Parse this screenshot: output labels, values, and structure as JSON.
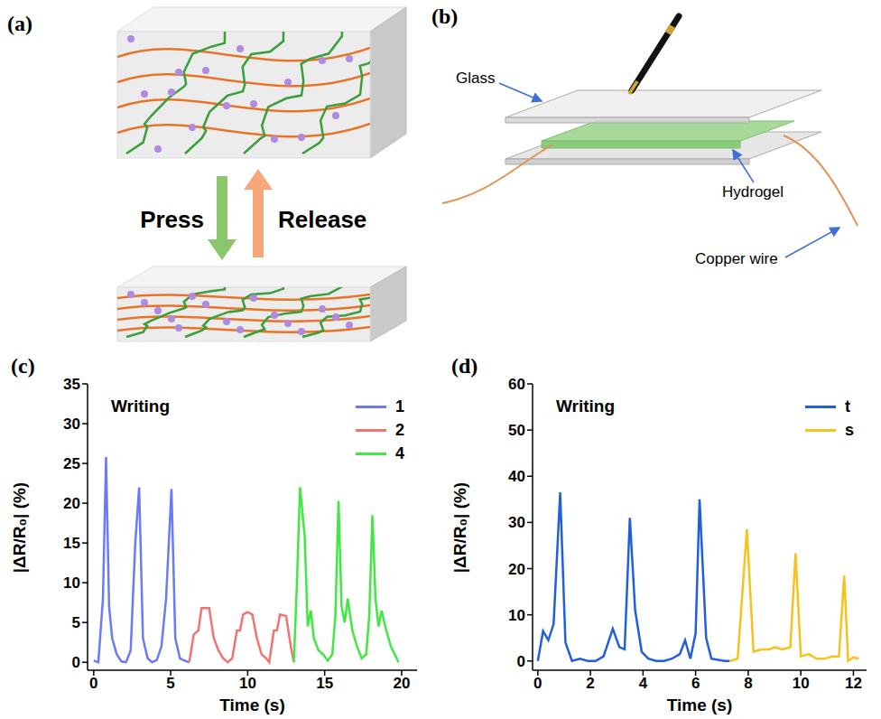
{
  "diagrams": {
    "a": {
      "label": "(a)",
      "press": "Press",
      "release": "Release"
    },
    "b": {
      "label": "(b)",
      "glass": "Glass",
      "hydrogel": "Hydrogel",
      "copper_wire": "Copper wire"
    }
  },
  "chart_data": [
    {
      "type": "line",
      "title": "(c)",
      "annotations": [
        "Writing"
      ],
      "x_label": "Time (s)",
      "y_label": "|ΔR/R₀| (%)",
      "xlim": [
        -0.4,
        21
      ],
      "xticks": [
        0,
        5,
        10,
        15,
        20
      ],
      "ylim": [
        -1,
        35
      ],
      "yticks": [
        0,
        5,
        10,
        15,
        20,
        25,
        30,
        35
      ],
      "legend": "upper right",
      "series": [
        {
          "name": "1",
          "color": "#6B7AF7",
          "x": [
            0,
            0.3,
            0.6,
            0.8,
            1.0,
            1.2,
            1.5,
            1.8,
            2.1,
            2.4,
            2.7,
            2.95,
            3.2,
            3.5,
            3.8,
            4.1,
            4.4,
            4.7,
            5.05,
            5.3,
            5.6,
            5.9,
            6.2
          ],
          "values": [
            0.2,
            0,
            8,
            25.8,
            7,
            3,
            1,
            0.1,
            0,
            1.5,
            15,
            22,
            3,
            0.5,
            0,
            0.3,
            2,
            8,
            21.8,
            3,
            0.5,
            0.2,
            0
          ]
        },
        {
          "name": "2",
          "color": "#F07470",
          "x": [
            6.2,
            6.5,
            6.8,
            7.0,
            7.5,
            7.8,
            8.1,
            8.4,
            8.7,
            9.0,
            9.3,
            9.5,
            9.7,
            10.0,
            10.3,
            10.6,
            10.9,
            11.2,
            11.4,
            11.7,
            11.9,
            12.1,
            12.5,
            12.8,
            13.0
          ],
          "values": [
            0,
            3.5,
            4,
            6.8,
            6.8,
            3,
            1.5,
            0.5,
            0,
            0.5,
            4,
            4,
            6,
            6.3,
            6,
            3,
            1,
            0.5,
            0,
            4,
            4,
            6,
            5.8,
            2,
            0
          ]
        },
        {
          "name": "4",
          "color": "#42E842",
          "x": [
            13.0,
            13.2,
            13.4,
            13.7,
            13.9,
            14.1,
            14.3,
            14.6,
            14.9,
            15.2,
            15.5,
            15.7,
            15.9,
            16.1,
            16.3,
            16.5,
            16.8,
            17.1,
            17.4,
            17.7,
            17.9,
            18.1,
            18.3,
            18.5,
            18.7,
            19.0,
            19.3,
            19.6,
            19.8
          ],
          "values": [
            0,
            10,
            22,
            16,
            4.5,
            6.5,
            3,
            1.5,
            1,
            0.2,
            1,
            6,
            20.3,
            7,
            5,
            8,
            4,
            2,
            0.5,
            1,
            6,
            18.5,
            8,
            4.5,
            6.5,
            4,
            2,
            0.8,
            0
          ]
        }
      ]
    },
    {
      "type": "line",
      "title": "(d)",
      "annotations": [
        "Writing"
      ],
      "x_label": "Time (s)",
      "y_label": "|ΔR/R₀| (%)",
      "xlim": [
        -0.2,
        12.5
      ],
      "xticks": [
        0,
        2,
        4,
        6,
        8,
        10,
        12
      ],
      "ylim": [
        -2,
        60
      ],
      "yticks": [
        0,
        10,
        20,
        30,
        40,
        50,
        60
      ],
      "legend": "upper right",
      "series": [
        {
          "name": "t",
          "color": "#1F5FE0",
          "x": [
            0,
            0.2,
            0.4,
            0.6,
            0.85,
            1.05,
            1.3,
            1.6,
            1.9,
            2.2,
            2.5,
            2.85,
            3.1,
            3.3,
            3.5,
            3.7,
            3.95,
            4.2,
            4.5,
            4.8,
            5.1,
            5.4,
            5.6,
            5.8,
            6.0,
            6.15,
            6.4,
            6.6,
            6.8,
            7.1,
            7.3
          ],
          "values": [
            0,
            6.5,
            4.5,
            8,
            36.5,
            4,
            0,
            0.5,
            0,
            0,
            1,
            7,
            3,
            2.5,
            31,
            11,
            2,
            0.5,
            0,
            0,
            0.5,
            1.5,
            4.5,
            0.5,
            6,
            35,
            5,
            0.5,
            0.3,
            0,
            0
          ]
        },
        {
          "name": "s",
          "color": "#F7C21B",
          "x": [
            7.3,
            7.6,
            7.95,
            8.2,
            8.5,
            8.8,
            9.0,
            9.3,
            9.6,
            9.8,
            10.0,
            10.3,
            10.6,
            10.9,
            11.2,
            11.45,
            11.65,
            11.8,
            12.0,
            12.2
          ],
          "values": [
            0,
            0.5,
            28.5,
            2,
            2.5,
            2.5,
            3,
            2.5,
            3,
            23.3,
            1,
            1.5,
            0.5,
            0.5,
            1,
            1,
            18.5,
            0,
            0.8,
            0.5
          ]
        }
      ]
    }
  ]
}
